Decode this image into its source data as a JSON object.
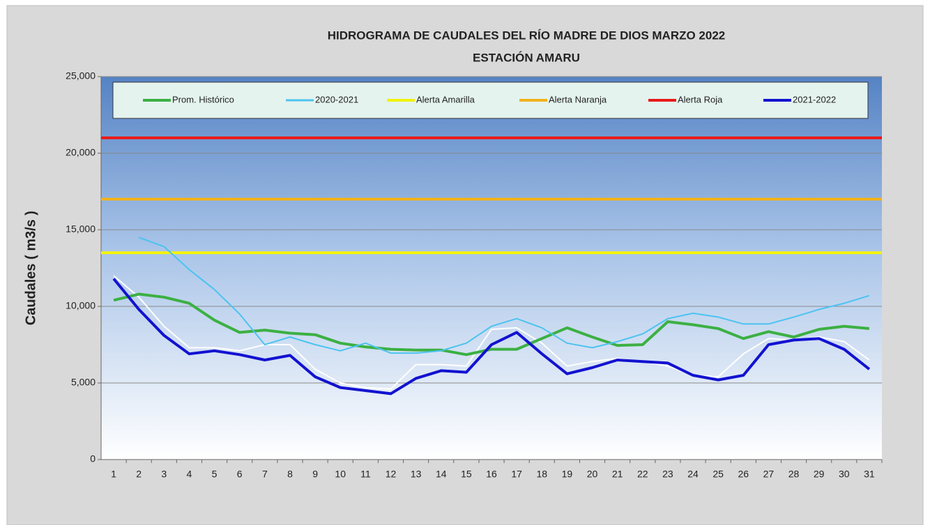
{
  "chart_data": {
    "type": "line",
    "title": "HIDROGRAMA DE CAUDALES DEL RÍO MADRE DE DIOS MARZO 2022",
    "subtitle": "ESTACIÓN AMARU",
    "y_label": "Caudales ( m3/s )",
    "categories": [
      "1",
      "2",
      "3",
      "4",
      "5",
      "6",
      "7",
      "8",
      "9",
      "10",
      "11",
      "12",
      "13",
      "14",
      "15",
      "16",
      "17",
      "18",
      "19",
      "20",
      "21",
      "22",
      "23",
      "24",
      "25",
      "26",
      "27",
      "28",
      "29",
      "30",
      "31"
    ],
    "ylim": [
      0,
      25000
    ],
    "yticks": [
      {
        "value": 0,
        "label": "0"
      },
      {
        "value": 5000,
        "label": "5,000"
      },
      {
        "value": 10000,
        "label": "10,000"
      },
      {
        "value": 15000,
        "label": "15,000"
      },
      {
        "value": 20000,
        "label": "20,000"
      },
      {
        "value": 25000,
        "label": "25,000"
      }
    ],
    "grid": true,
    "series": [
      {
        "name": "Prom. Histórico",
        "color": "#3cb043",
        "width": 4,
        "values": [
          10400,
          10800,
          10600,
          10200,
          9100,
          8300,
          8450,
          8250,
          8150,
          7600,
          7350,
          7200,
          7150,
          7150,
          6850,
          7200,
          7200,
          7900,
          8600,
          8000,
          7450,
          7500,
          9000,
          8800,
          8550,
          7900,
          8350,
          8000,
          8500,
          8700,
          8550
        ]
      },
      {
        "name": "2020-2021",
        "color": "#4cc3f0",
        "width": 2,
        "values": [
          null,
          14500,
          13900,
          12400,
          11100,
          9500,
          7500,
          8000,
          7500,
          7100,
          7600,
          6950,
          6950,
          7100,
          7600,
          8700,
          9200,
          8600,
          7600,
          7300,
          7700,
          8200,
          9200,
          9550,
          9300,
          8850,
          8850,
          9300,
          9800,
          10200,
          10700
        ]
      },
      {
        "name": "Alerta Amarilla",
        "color": "#f2f20a",
        "width": 4,
        "value": 13500
      },
      {
        "name": "Alerta Naranja",
        "color": "#f0b21c",
        "width": 4,
        "value": 17000
      },
      {
        "name": "Alerta Roja",
        "color": "#e81a1a",
        "width": 4,
        "value": 21000
      },
      {
        "name": "2021-2022",
        "color": "#1212d0",
        "width": 4,
        "values": [
          11800,
          9800,
          8100,
          6900,
          7100,
          6850,
          6500,
          6800,
          5400,
          4700,
          4500,
          4300,
          5300,
          5800,
          5700,
          7500,
          8300,
          6900,
          5600,
          6000,
          6500,
          6400,
          6300,
          5500,
          5200,
          5500,
          7500,
          7800,
          7900,
          7200,
          5900
        ]
      },
      {
        "name": null,
        "color": "#ffffff",
        "width": 2,
        "values": [
          12000,
          10600,
          8700,
          7300,
          7300,
          7100,
          7500,
          7500,
          5900,
          5000,
          4700,
          4600,
          6200,
          6200,
          6100,
          8500,
          8600,
          7600,
          6100,
          6400,
          6600,
          6400,
          6100,
          5500,
          5400,
          6900,
          7900,
          7800,
          8000,
          7700,
          6500
        ]
      }
    ]
  }
}
